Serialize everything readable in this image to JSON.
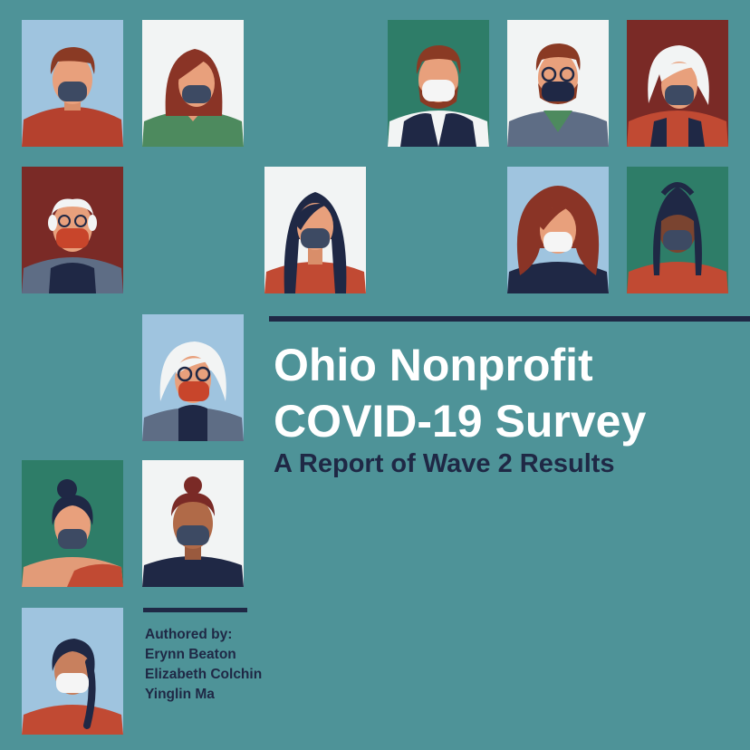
{
  "title": {
    "line1": "Ohio Nonprofit",
    "line2": "COVID-19 Survey"
  },
  "subtitle": "A Report of Wave 2 Results",
  "authors": {
    "heading": "Authored by:",
    "names": [
      "Erynn Beaton",
      "Elizabeth Colchin",
      "Yinglin Ma"
    ]
  },
  "colors": {
    "background": "#4e9398",
    "navy": "#1f2845",
    "title_text": "#ffffff",
    "panel_blue": "#9fc4df",
    "panel_white": "#f2f4f4",
    "panel_green": "#2e7d68",
    "panel_red": "#7a2a26"
  },
  "portraits": [
    {
      "label": "man-brown-hair-dark-mask"
    },
    {
      "label": "woman-auburn-bob-dark-mask"
    },
    {
      "label": "man-beard-white-mask-vest"
    },
    {
      "label": "man-glasses-dark-mask"
    },
    {
      "label": "older-woman-white-hair-dark-mask"
    },
    {
      "label": "older-man-glasses-red-mask"
    },
    {
      "label": "woman-long-black-hair-dark-mask"
    },
    {
      "label": "woman-curly-red-hair-white-mask"
    },
    {
      "label": "man-locs-dark-mask"
    },
    {
      "label": "older-woman-glasses-red-mask"
    },
    {
      "label": "woman-bun-dark-mask"
    },
    {
      "label": "man-topknot-dark-mask"
    },
    {
      "label": "woman-braid-white-mask"
    }
  ]
}
